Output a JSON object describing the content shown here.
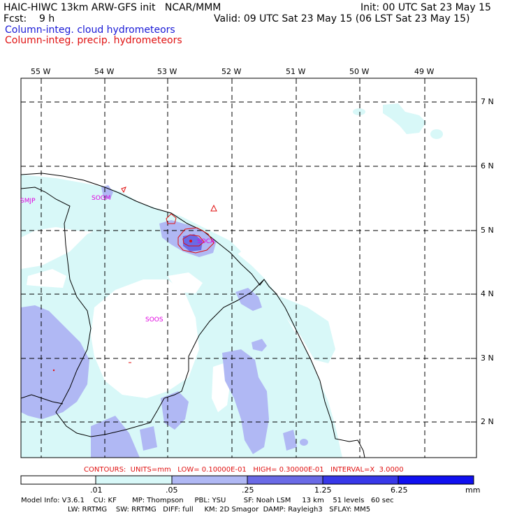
{
  "header": {
    "line1_left": "HAIC-HIWC 13km ARW-GFS init   NCAR/MMM",
    "line1_right": "Init: 00 UTC Sat 23 May 15",
    "line2_left": "Fcst:    9 h",
    "line2_right": "Valid: 09 UTC Sat 23 May 15 (06 LST Sat 23 May 15)",
    "field1": "Column-integ. cloud hydrometeors",
    "field2": "Column-integ. precip. hydrometeors",
    "field1_color": "#1a1ad6",
    "field2_color": "#e01010"
  },
  "map": {
    "lon_labels": [
      "55 W",
      "54 W",
      "53 W",
      "52 W",
      "51 W",
      "50 W",
      "49 W"
    ],
    "lat_labels": [
      "7 N",
      "6 N",
      "5 N",
      "4 N",
      "3 N",
      "2 N"
    ],
    "station_labels": [
      "SMJP",
      "SOGM",
      "SOCA",
      "SOOS"
    ],
    "station_color": "#e000e0",
    "shading_colors": [
      "#ffffff",
      "#d8f8f8",
      "#b0b8f4",
      "#6a6ae6",
      "#3838e8",
      "#1010f0"
    ],
    "coast_color": "#000000",
    "contour_color": "#e01010"
  },
  "contours_line": "CONTOURS:  UNITS=mm   LOW= 0.10000E-01   HIGH= 0.30000E-01   INTERVAL=X  3.0000",
  "legend": {
    "labels": [
      ".01",
      ".05",
      ".25",
      "1.25",
      "6.25"
    ],
    "unit": "mm"
  },
  "model_info": {
    "line1": "Model Info: V3.6.1    CU: KF       MP: Thompson     PBL: YSU        SF: Noah LSM     13 km    51 levels   60 sec",
    "line2": "LW: RRTMG    SW: RRTMG   DIFF: full     KM: 2D Smagor  DAMP: Rayleigh3   SFLAY: MM5"
  }
}
